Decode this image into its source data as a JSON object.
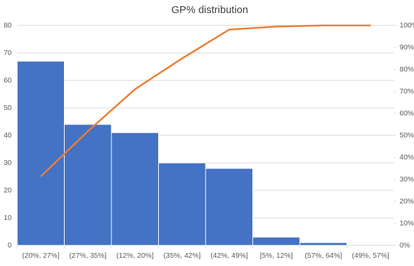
{
  "chart_data": {
    "type": "pareto",
    "title": "GP% distribution",
    "categories": [
      "(20%, 27%]",
      "(27%, 35%]",
      "(12%, 20%]",
      "(35%, 42%]",
      "(42%, 49%]",
      "[5%, 12%]",
      "(57%, 64%]",
      "(49%, 57%]"
    ],
    "series": [
      {
        "type": "bar",
        "color": "#4472c4",
        "values": [
          67,
          44,
          41,
          30,
          28,
          3,
          1,
          0
        ]
      },
      {
        "type": "line",
        "axis": "y2",
        "color": "#ed7d31",
        "values": [
          31.3,
          51.9,
          71.0,
          85.0,
          98.1,
          99.5,
          100,
          100
        ]
      }
    ],
    "ylim": [
      0,
      80
    ],
    "yticks": [
      0,
      10,
      20,
      30,
      40,
      50,
      60,
      70,
      80
    ],
    "y2lim": [
      0,
      100
    ],
    "y2ticks": [
      {
        "value": 0,
        "label": "0%"
      },
      {
        "value": 10,
        "label": "10%"
      },
      {
        "value": 20,
        "label": "20%"
      },
      {
        "value": 30,
        "label": "30%"
      },
      {
        "value": 40,
        "label": "40%"
      },
      {
        "value": 50,
        "label": "50%"
      },
      {
        "value": 60,
        "label": "60%"
      },
      {
        "value": 70,
        "label": "70%"
      },
      {
        "value": 80,
        "label": "80%"
      },
      {
        "value": 90,
        "label": "90%"
      },
      {
        "value": 100,
        "label": "100%"
      }
    ],
    "grid": true
  }
}
